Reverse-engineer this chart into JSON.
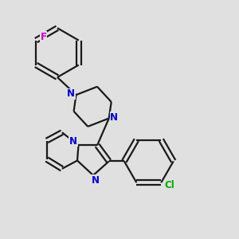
{
  "background_color": "#e0e0e0",
  "bond_color": "#1a1a1a",
  "nitrogen_color": "#0000cc",
  "fluorine_color": "#cc00cc",
  "chlorine_color": "#00aa00",
  "line_width": 1.6,
  "figsize": [
    3.0,
    3.0
  ],
  "dpi": 100,
  "xlim": [
    0,
    10
  ],
  "ylim": [
    0,
    10
  ]
}
